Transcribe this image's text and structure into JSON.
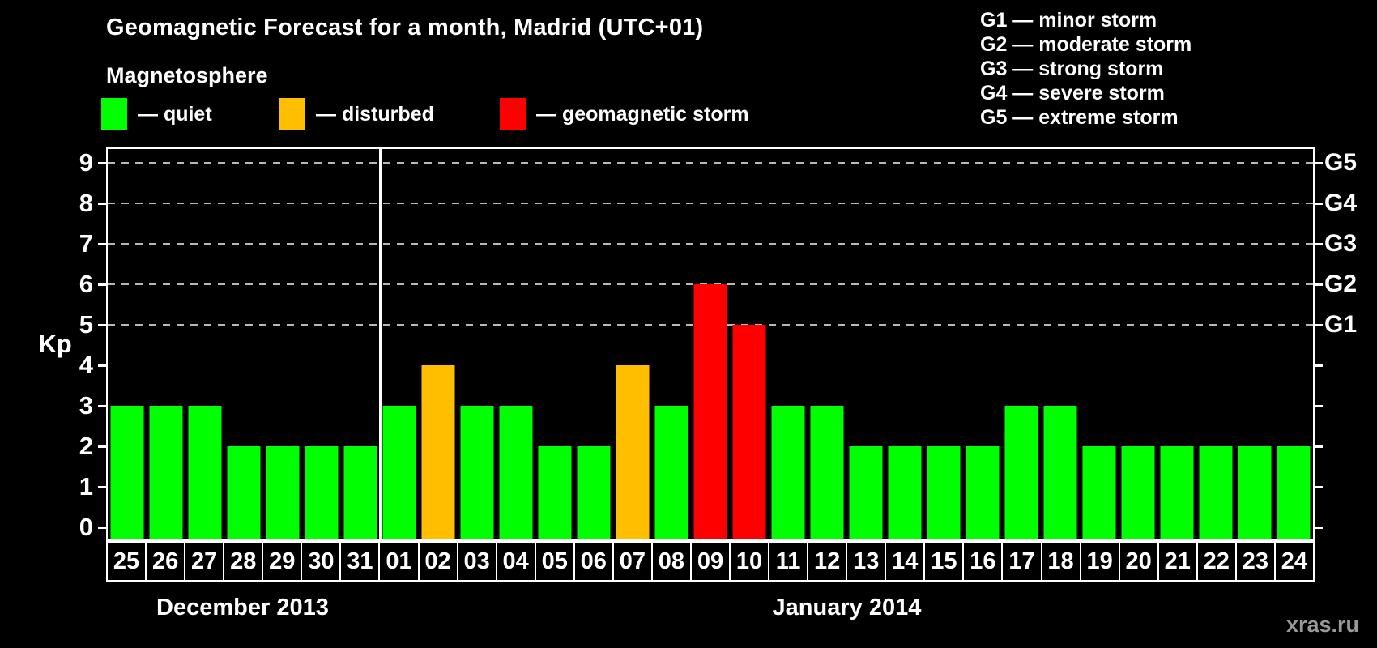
{
  "title": "Geomagnetic Forecast for a month, Madrid (UTC+01)",
  "legend": {
    "heading": "Magnetosphere",
    "items": [
      {
        "key": "quiet",
        "label": "— quiet",
        "color": "#00ff00",
        "x": 125
      },
      {
        "key": "disturbed",
        "label": "— disturbed",
        "color": "#ffbf00",
        "x": 345
      },
      {
        "key": "storm",
        "label": "— geomagnetic storm",
        "color": "#ff0000",
        "x": 617
      }
    ]
  },
  "g_legend": [
    "G1 — minor storm",
    "G2 — moderate storm",
    "G3 — strong storm",
    "G4 — severe storm",
    "G5 — extreme storm"
  ],
  "watermark": "xras.ru",
  "chart_data": {
    "type": "bar",
    "title": "Geomagnetic Forecast for a month, Madrid (UTC+01)",
    "ylabel": "Kp",
    "ylim": [
      0,
      9
    ],
    "y_ticks": [
      0,
      1,
      2,
      3,
      4,
      5,
      6,
      7,
      8,
      9
    ],
    "gridline_kp": [
      5,
      6,
      7,
      8,
      9
    ],
    "right_axis_labels": [
      {
        "kp": 5,
        "label": "G1"
      },
      {
        "kp": 6,
        "label": "G2"
      },
      {
        "kp": 7,
        "label": "G3"
      },
      {
        "kp": 8,
        "label": "G4"
      },
      {
        "kp": 9,
        "label": "G5"
      }
    ],
    "months": [
      {
        "label": "December 2013",
        "days": 7
      },
      {
        "label": "January 2014",
        "days": 24
      }
    ],
    "categories": [
      "Dec 25",
      "Dec 26",
      "Dec 27",
      "Dec 28",
      "Dec 29",
      "Dec 30",
      "Dec 31",
      "Jan 01",
      "Jan 02",
      "Jan 03",
      "Jan 04",
      "Jan 05",
      "Jan 06",
      "Jan 07",
      "Jan 08",
      "Jan 09",
      "Jan 10",
      "Jan 11",
      "Jan 12",
      "Jan 13",
      "Jan 14",
      "Jan 15",
      "Jan 16",
      "Jan 17",
      "Jan 18",
      "Jan 19",
      "Jan 20",
      "Jan 21",
      "Jan 22",
      "Jan 23",
      "Jan 24"
    ],
    "day_labels": [
      "25",
      "26",
      "27",
      "28",
      "29",
      "30",
      "31",
      "01",
      "02",
      "03",
      "04",
      "05",
      "06",
      "07",
      "08",
      "09",
      "10",
      "11",
      "12",
      "13",
      "14",
      "15",
      "16",
      "17",
      "18",
      "19",
      "20",
      "21",
      "22",
      "23",
      "24"
    ],
    "values": [
      3,
      3,
      3,
      2,
      2,
      2,
      2,
      3,
      4,
      3,
      3,
      2,
      2,
      4,
      3,
      6,
      5,
      3,
      3,
      2,
      2,
      2,
      2,
      3,
      3,
      2,
      2,
      2,
      2,
      2,
      2
    ],
    "statuses": [
      "quiet",
      "quiet",
      "quiet",
      "quiet",
      "quiet",
      "quiet",
      "quiet",
      "quiet",
      "disturbed",
      "quiet",
      "quiet",
      "quiet",
      "quiet",
      "disturbed",
      "quiet",
      "storm",
      "storm",
      "quiet",
      "quiet",
      "quiet",
      "quiet",
      "quiet",
      "quiet",
      "quiet",
      "quiet",
      "quiet",
      "quiet",
      "quiet",
      "quiet",
      "quiet",
      "quiet"
    ],
    "legend_position": "top",
    "grid": "dashed horizontal at G-storm levels only"
  }
}
